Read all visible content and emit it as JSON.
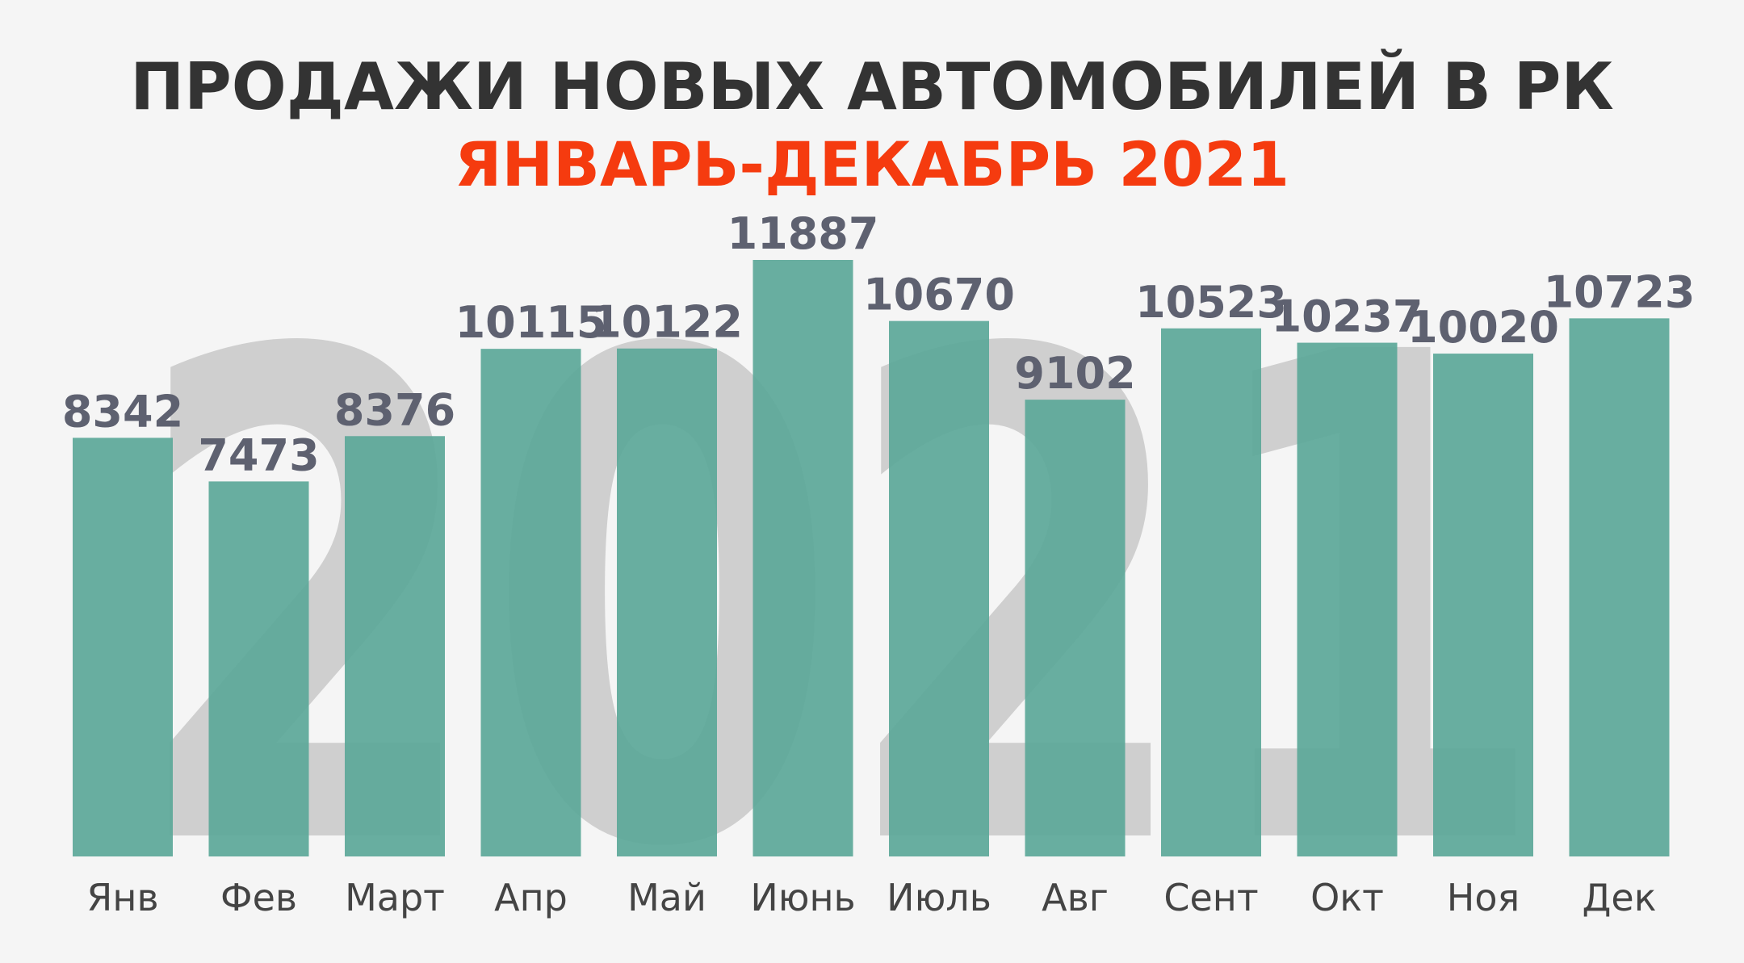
{
  "chart_data": {
    "type": "bar",
    "title": "ПРОДАЖИ НОВЫХ АВТОМОБИЛЕЙ В РК",
    "subtitle": "ЯНВАРЬ-ДЕКАБРЬ 2021",
    "background_text": "2021",
    "categories": [
      "Янв",
      "Фев",
      "Март",
      "Апр",
      "Май",
      "Июнь",
      "Июль",
      "Авг",
      "Сент",
      "Окт",
      "Ноя",
      "Дек"
    ],
    "values": [
      8342,
      7473,
      8376,
      10115,
      10122,
      11887,
      10670,
      9102,
      10523,
      10237,
      10020,
      10723
    ],
    "color": "#5ca899"
  }
}
